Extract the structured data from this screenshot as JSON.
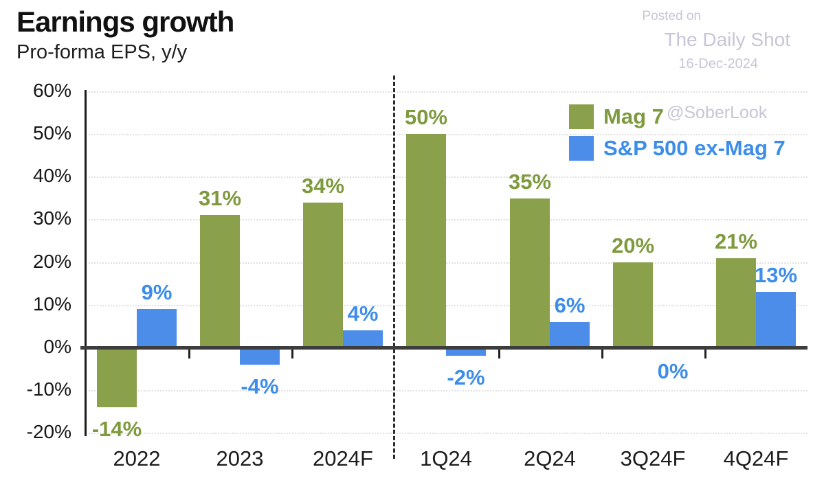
{
  "header": {
    "title": "Earnings growth",
    "subtitle": "Pro-forma EPS, y/y"
  },
  "watermark": {
    "posted_on": "Posted on",
    "site": "The Daily Shot",
    "date": "16-Dec-2024",
    "handle": "@SoberLook"
  },
  "colors": {
    "mag7_bar": "#8AA04B",
    "mag7_label": "#7E9A3E",
    "sp500_bar": "#4C8DE9",
    "sp500_label": "#3D8DEA",
    "watermark_text": "#c6c6d8",
    "zero_line": "#3d3d3d",
    "gridline": "#e0e0e0"
  },
  "chart_data": {
    "type": "bar",
    "title": "Earnings growth",
    "subtitle": "Pro-forma EPS, y/y",
    "categories": [
      "2022",
      "2023",
      "2024F",
      "1Q24",
      "2Q24",
      "3Q24F",
      "4Q24F"
    ],
    "series": [
      {
        "name": "Mag 7",
        "color": "#8AA04B",
        "label_color": "#7E9A3E",
        "values": [
          -14,
          31,
          34,
          50,
          35,
          20,
          21
        ],
        "data_labels": [
          "-14%",
          "31%",
          "34%",
          "50%",
          "35%",
          "20%",
          "21%"
        ]
      },
      {
        "name": "S&P 500 ex-Mag 7",
        "color": "#4C8DE9",
        "label_color": "#3D8DEA",
        "values": [
          9,
          -4,
          4,
          -2,
          6,
          0,
          13
        ],
        "data_labels": [
          "9%",
          "-4%",
          "4%",
          "-2%",
          "6%",
          "0%",
          "13%"
        ]
      }
    ],
    "ylim": [
      -20,
      60
    ],
    "ytick_labels": [
      "60%",
      "50%",
      "40%",
      "30%",
      "20%",
      "10%",
      "0%",
      "-10%",
      "-20%"
    ],
    "grid": true,
    "legend_position": "top-right",
    "separator_after_category": "2024F"
  }
}
